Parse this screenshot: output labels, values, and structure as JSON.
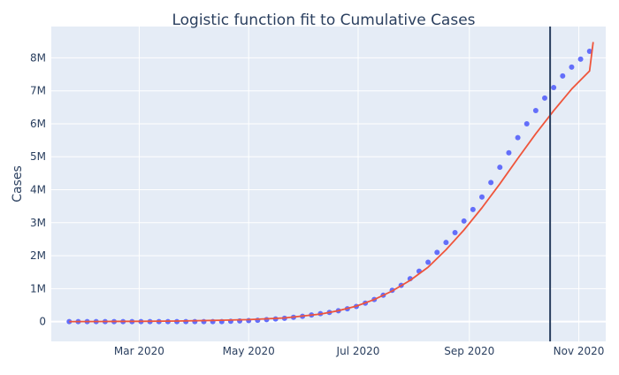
{
  "chart_data": {
    "type": "scatter",
    "title": "Logistic function fit to Cumulative Cases",
    "xlabel": "",
    "ylabel": "Cases",
    "x_axis_type": "date",
    "xlim": [
      "2020-01-12",
      "2020-11-16"
    ],
    "ylim": [
      -600000,
      8950000
    ],
    "x_ticks": [
      {
        "date": "2020-03-01",
        "label": "Mar 2020"
      },
      {
        "date": "2020-05-01",
        "label": "May 2020"
      },
      {
        "date": "2020-07-01",
        "label": "Jul 2020"
      },
      {
        "date": "2020-09-01",
        "label": "Sep 2020"
      },
      {
        "date": "2020-11-01",
        "label": "Nov 2020"
      }
    ],
    "y_ticks": [
      {
        "value": 0,
        "label": "0"
      },
      {
        "value": 1000000,
        "label": "1M"
      },
      {
        "value": 2000000,
        "label": "2M"
      },
      {
        "value": 3000000,
        "label": "3M"
      },
      {
        "value": 4000000,
        "label": "4M"
      },
      {
        "value": 5000000,
        "label": "5M"
      },
      {
        "value": 6000000,
        "label": "6M"
      },
      {
        "value": 7000000,
        "label": "7M"
      },
      {
        "value": 8000000,
        "label": "8M"
      }
    ],
    "grid": true,
    "colors": {
      "plot_bg": "#e5ecf6",
      "grid": "#ffffff",
      "points": "#636efa",
      "fit_line": "#ef553b",
      "vline": "#2a3f5f",
      "text": "#2a3f5f"
    },
    "series": [
      {
        "kind": "markers",
        "x": [
          "2020-01-22",
          "2020-01-27",
          "2020-02-01",
          "2020-02-06",
          "2020-02-11",
          "2020-02-16",
          "2020-02-21",
          "2020-02-26",
          "2020-03-02",
          "2020-03-07",
          "2020-03-12",
          "2020-03-17",
          "2020-03-22",
          "2020-03-27",
          "2020-04-01",
          "2020-04-06",
          "2020-04-11",
          "2020-04-16",
          "2020-04-21",
          "2020-04-26",
          "2020-05-01",
          "2020-05-06",
          "2020-05-11",
          "2020-05-16",
          "2020-05-21",
          "2020-05-26",
          "2020-05-31",
          "2020-06-05",
          "2020-06-10",
          "2020-06-15",
          "2020-06-20",
          "2020-06-25",
          "2020-06-30",
          "2020-07-05",
          "2020-07-10",
          "2020-07-15",
          "2020-07-20",
          "2020-07-25",
          "2020-07-30",
          "2020-08-04",
          "2020-08-09",
          "2020-08-14",
          "2020-08-19",
          "2020-08-24",
          "2020-08-29",
          "2020-09-03",
          "2020-09-08",
          "2020-09-13",
          "2020-09-18",
          "2020-09-23",
          "2020-09-28",
          "2020-10-03",
          "2020-10-08",
          "2020-10-13",
          "2020-10-18",
          "2020-10-23",
          "2020-10-28",
          "2020-11-02",
          "2020-11-07"
        ],
        "y": [
          0,
          0,
          0,
          0,
          0,
          0,
          0,
          0,
          0,
          0,
          0,
          0,
          0,
          0,
          0,
          0,
          0,
          0,
          10000,
          20000,
          30000,
          40000,
          60000,
          80000,
          100000,
          130000,
          160000,
          200000,
          240000,
          280000,
          330000,
          390000,
          460000,
          560000,
          670000,
          800000,
          950000,
          1100000,
          1300000,
          1530000,
          1800000,
          2100000,
          2400000,
          2700000,
          3050000,
          3400000,
          3780000,
          4220000,
          4680000,
          5120000,
          5580000,
          6000000,
          6400000,
          6780000,
          7100000,
          7450000,
          7720000,
          7960000,
          8200000
        ]
      },
      {
        "kind": "line",
        "x": [
          "2020-01-22",
          "2020-02-11",
          "2020-03-02",
          "2020-03-22",
          "2020-04-11",
          "2020-05-01",
          "2020-05-21",
          "2020-06-10",
          "2020-06-20",
          "2020-06-30",
          "2020-07-10",
          "2020-07-20",
          "2020-07-30",
          "2020-08-09",
          "2020-08-19",
          "2020-08-29",
          "2020-09-08",
          "2020-09-18",
          "2020-09-28",
          "2020-10-08",
          "2020-10-18",
          "2020-10-28",
          "2020-11-07",
          "2020-11-09"
        ],
        "y": [
          2000,
          4000,
          8000,
          16000,
          35000,
          60000,
          110000,
          230000,
          330000,
          470000,
          670000,
          930000,
          1250000,
          1650000,
          2180000,
          2780000,
          3450000,
          4180000,
          4950000,
          5700000,
          6400000,
          7050000,
          7600000,
          8480000
        ]
      }
    ],
    "vline": {
      "x": "2020-10-16"
    }
  }
}
